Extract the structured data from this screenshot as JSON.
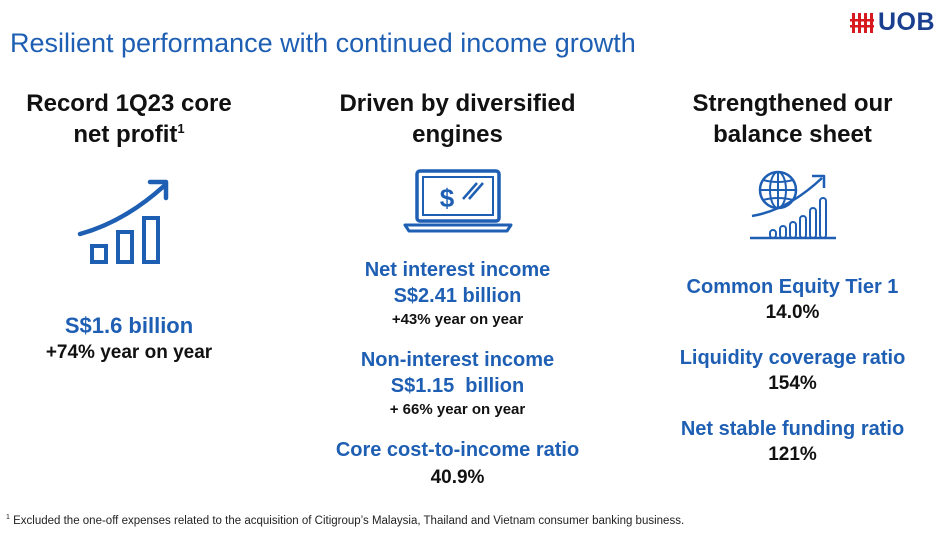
{
  "header": {
    "title": "Resilient performance with continued income growth",
    "logo_text": "UOB"
  },
  "colors": {
    "accent": "#1e5fb4",
    "brand": "#1a3f8f",
    "logo_red": "#d71920"
  },
  "columns": [
    {
      "title_line1": "Record 1Q23 core",
      "title_line2": "net profit",
      "title_sup": "1",
      "icon": "growth-bar-chart-icon",
      "value": "S$1.6 billion",
      "change": "+74% year on year"
    },
    {
      "title_line1": "Driven by diversified",
      "title_line2": "engines",
      "icon": "laptop-dollar-icon",
      "metrics": [
        {
          "name": "Net interest income",
          "value": "S$2.41 billion",
          "change": "+43% year on year"
        },
        {
          "name": "Non-interest income",
          "value": "S$1.15  billion",
          "change": "+ 66% year on year"
        },
        {
          "name": "Core cost-to-income ratio",
          "value": "40.9%"
        }
      ]
    },
    {
      "title_line1": "Strengthened our",
      "title_line2": "balance sheet",
      "icon": "globe-growth-icon",
      "metrics": [
        {
          "name": "Common Equity Tier 1",
          "value": "14.0%"
        },
        {
          "name": "Liquidity coverage ratio",
          "value": "154%"
        },
        {
          "name": "Net stable funding ratio",
          "value": "121%"
        }
      ]
    }
  ],
  "footnote": {
    "marker": "1",
    "text": " Excluded the one-off expenses related to the acquisition of Citigroup’s Malaysia, Thailand and Vietnam consumer banking business."
  }
}
